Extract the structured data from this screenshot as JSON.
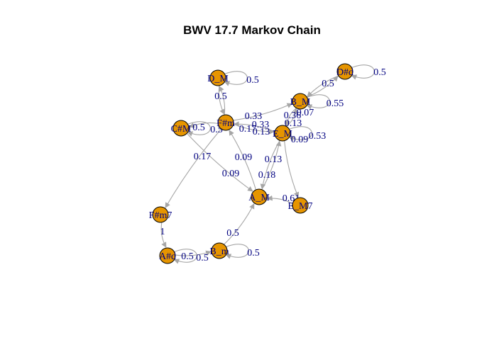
{
  "title": "BWV 17.7 Markov Chain",
  "colors": {
    "node_fill": "#e69500",
    "node_stroke": "#000000",
    "edge": "#a6a6a6",
    "label": "#000080",
    "title": "#000000",
    "background": "#ffffff"
  },
  "nodes": [
    {
      "id": "D_M",
      "label": "D_M"
    },
    {
      "id": "D#d",
      "label": "D#d"
    },
    {
      "id": "B_M",
      "label": "B_M"
    },
    {
      "id": "F#m",
      "label": "F#m"
    },
    {
      "id": "C#M",
      "label": "C#M"
    },
    {
      "id": "E_M",
      "label": "E_M"
    },
    {
      "id": "A_M",
      "label": "A_M"
    },
    {
      "id": "E_M7",
      "label": "E_M7"
    },
    {
      "id": "F#m7",
      "label": "F#m7"
    },
    {
      "id": "A#d",
      "label": "A#d"
    },
    {
      "id": "B_m",
      "label": "B_m"
    }
  ],
  "edges": [
    {
      "from": "D_M",
      "to": "D_M",
      "label": "0.5"
    },
    {
      "from": "D_M",
      "to": "F#m",
      "label": "0.5"
    },
    {
      "from": "D#d",
      "to": "D#d",
      "label": "0.5"
    },
    {
      "from": "D#d",
      "to": "B_M",
      "label": "0.5"
    },
    {
      "from": "B_M",
      "to": "B_M",
      "label": "0.55"
    },
    {
      "from": "B_M",
      "to": "D#d",
      "label": "0.07"
    },
    {
      "from": "B_M",
      "to": "E_M",
      "label": "0.36"
    },
    {
      "from": "F#m",
      "to": "B_M",
      "label": "0.33"
    },
    {
      "from": "F#m",
      "to": "E_M",
      "label": "0.33"
    },
    {
      "from": "F#m",
      "to": "C#M",
      "label": "0.5"
    },
    {
      "from": "F#m",
      "to": "D_M",
      "label": "0.17"
    },
    {
      "from": "F#m",
      "to": "F#m7",
      "label": "0.17"
    },
    {
      "from": "C#M",
      "to": "C#M",
      "label": "0.5"
    },
    {
      "from": "C#M",
      "to": "A_M",
      "label": "0.09"
    },
    {
      "from": "E_M",
      "to": "E_M",
      "label": "0.53"
    },
    {
      "from": "E_M",
      "to": "F#m",
      "label": "0.13"
    },
    {
      "from": "E_M",
      "to": "B_M",
      "label": "0.13"
    },
    {
      "from": "E_M",
      "to": "A_M",
      "label": "0.13"
    },
    {
      "from": "E_M",
      "to": "E_M7",
      "label": "0.09"
    },
    {
      "from": "A_M",
      "to": "F#m",
      "label": "0.09"
    },
    {
      "from": "A_M",
      "to": "E_M",
      "label": "0.18"
    },
    {
      "from": "E_M7",
      "to": "A_M",
      "label": "0.61"
    },
    {
      "from": "F#m7",
      "to": "A#d",
      "label": "1"
    },
    {
      "from": "A#d",
      "to": "A#d",
      "label": "0.5"
    },
    {
      "from": "A#d",
      "to": "B_m",
      "label": "0.5"
    },
    {
      "from": "B_m",
      "to": "B_m",
      "label": "0.5"
    },
    {
      "from": "B_m",
      "to": "A_M",
      "label": "0.5"
    }
  ]
}
